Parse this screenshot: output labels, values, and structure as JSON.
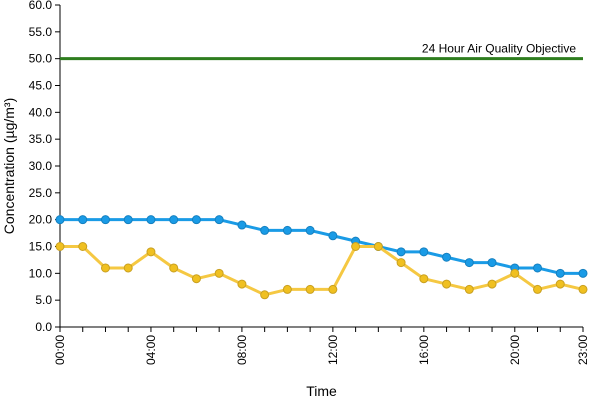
{
  "chart_data": {
    "type": "line",
    "xlabel": "Time",
    "ylabel": "Concentration (µg/m³)",
    "ylim": [
      0,
      60
    ],
    "y_ticks": [
      "0.0",
      "5.0",
      "10.0",
      "15.0",
      "20.0",
      "25.0",
      "30.0",
      "35.0",
      "40.0",
      "45.0",
      "50.0",
      "55.0",
      "60.0"
    ],
    "x_tick_labels": [
      "00:00",
      "04:00",
      "08:00",
      "12:00",
      "16:00",
      "20:00",
      "23:00"
    ],
    "x_tick_hours": [
      0,
      4,
      8,
      12,
      16,
      20,
      23
    ],
    "x": [
      0,
      1,
      2,
      3,
      4,
      5,
      6,
      7,
      8,
      9,
      10,
      11,
      12,
      13,
      14,
      15,
      16,
      17,
      18,
      19,
      20,
      21,
      22,
      23
    ],
    "series": [
      {
        "color": "#1a9be6",
        "marker_color": "#1a9be6",
        "values": [
          20,
          20,
          20,
          20,
          20,
          20,
          20,
          20,
          19,
          18,
          18,
          18,
          17,
          16,
          15,
          14,
          14,
          13,
          12,
          12,
          11,
          11,
          10,
          10
        ]
      },
      {
        "color": "#f5c842",
        "marker_color": "#f0c020",
        "values": [
          15,
          15,
          11,
          11,
          14,
          11,
          9,
          10,
          8,
          6,
          7,
          7,
          7,
          15,
          15,
          12,
          9,
          8,
          7,
          8,
          10,
          7,
          8,
          7
        ]
      }
    ],
    "reference_line": {
      "value": 50,
      "label": "24 Hour Air Quality Objective",
      "color": "#2e7d1e"
    },
    "grid": false
  }
}
